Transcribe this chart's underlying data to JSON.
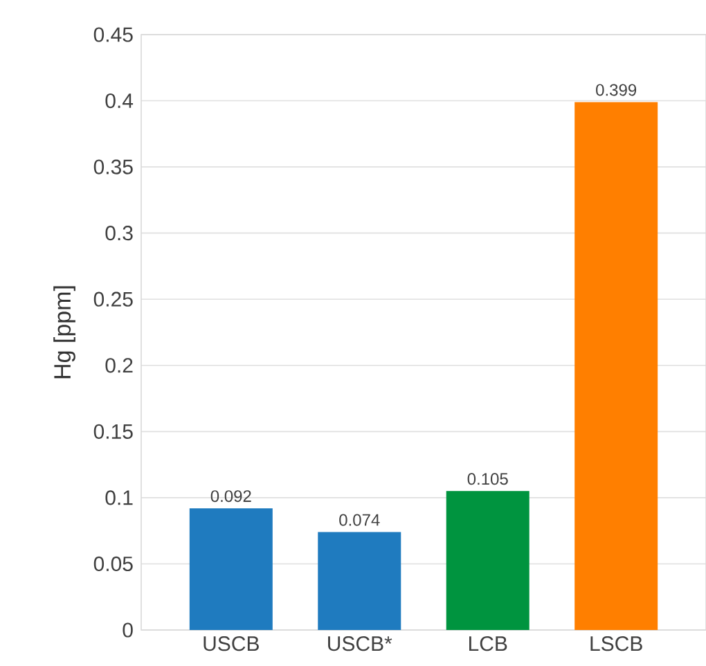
{
  "chart_data": {
    "type": "bar",
    "ylabel": "Hg [ppm]",
    "categories": [
      "USCB",
      "USCB*",
      "LCB",
      "LSCB"
    ],
    "values": [
      0.092,
      0.074,
      0.105,
      0.399
    ],
    "colors": [
      "#1f7bbf",
      "#1f7bbf",
      "#00943f",
      "#ff7f00"
    ],
    "ylim": [
      0,
      0.45
    ],
    "yticks": [
      0,
      0.05,
      0.1,
      0.15,
      0.2,
      0.25,
      0.3,
      0.35,
      0.4,
      0.45
    ],
    "grid": "y",
    "data_labels": true
  }
}
